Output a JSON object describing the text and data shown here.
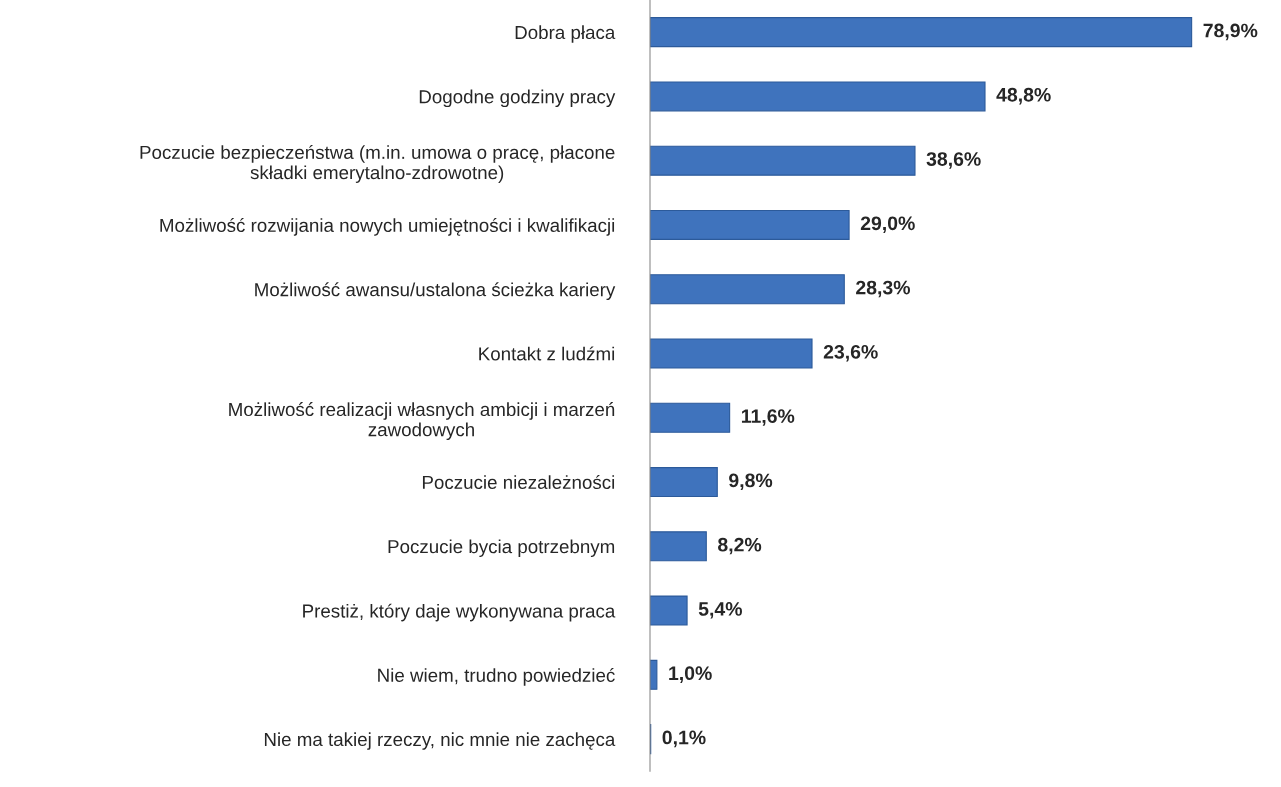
{
  "chart_data": {
    "type": "bar",
    "orientation": "horizontal",
    "categories": [
      "Dobra płaca",
      "Dogodne godziny pracy",
      "Poczucie bezpieczeństwa (m.in. umowa o pracę, płacone\nskładki emerytalno-zdrowotne)",
      "Możliwość rozwijania nowych umiejętności i kwalifikacji",
      "Możliwość awansu/ustalona ścieżka kariery",
      "Kontakt z ludźmi",
      "Możliwość realizacji własnych ambicji i marzeń\nzawodowych",
      "Poczucie niezależności",
      "Poczucie bycia potrzebnym",
      "Prestiż, który daje wykonywana praca",
      "Nie wiem, trudno powiedzieć",
      "Nie ma takiej rzeczy, nic mnie nie zachęca"
    ],
    "values": [
      78.9,
      48.8,
      38.6,
      29.0,
      28.3,
      23.6,
      11.6,
      9.8,
      8.2,
      5.4,
      1.0,
      0.1
    ],
    "value_labels": [
      "78,9%",
      "48,8%",
      "38,6%",
      "29,0%",
      "28,3%",
      "23,6%",
      "11,6%",
      "9,8%",
      "8,2%",
      "5,4%",
      "1,0%",
      "0,1%"
    ],
    "color": "#3f73bd",
    "grid": false,
    "legend": false
  }
}
